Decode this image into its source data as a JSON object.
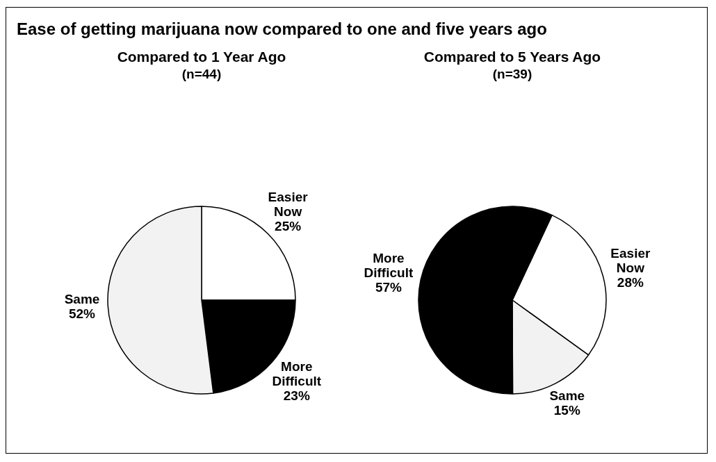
{
  "chart_data": [
    {
      "type": "other",
      "title": "Ease of getting marijuana now compared to one and five years ago"
    },
    {
      "type": "pie",
      "title": "Compared to 1 Year Ago",
      "subtitle": "(n=44)",
      "categories": [
        "Easier Now",
        "More Difficult",
        "Same"
      ],
      "values": [
        25,
        23,
        52
      ],
      "colors": [
        "#ffffff",
        "#000000",
        "#f2f2f2"
      ],
      "value_labels": [
        "25%",
        "23%",
        "52%"
      ],
      "legend": false
    },
    {
      "type": "pie",
      "title": "Compared to 5 Years Ago",
      "subtitle": "(n=39)",
      "categories": [
        "Easier Now",
        "Same",
        "More Difficult"
      ],
      "values": [
        28,
        15,
        57
      ],
      "colors": [
        "#ffffff",
        "#f2f2f2",
        "#000000"
      ],
      "value_labels": [
        "28%",
        "15%",
        "57%"
      ],
      "legend": false
    }
  ]
}
